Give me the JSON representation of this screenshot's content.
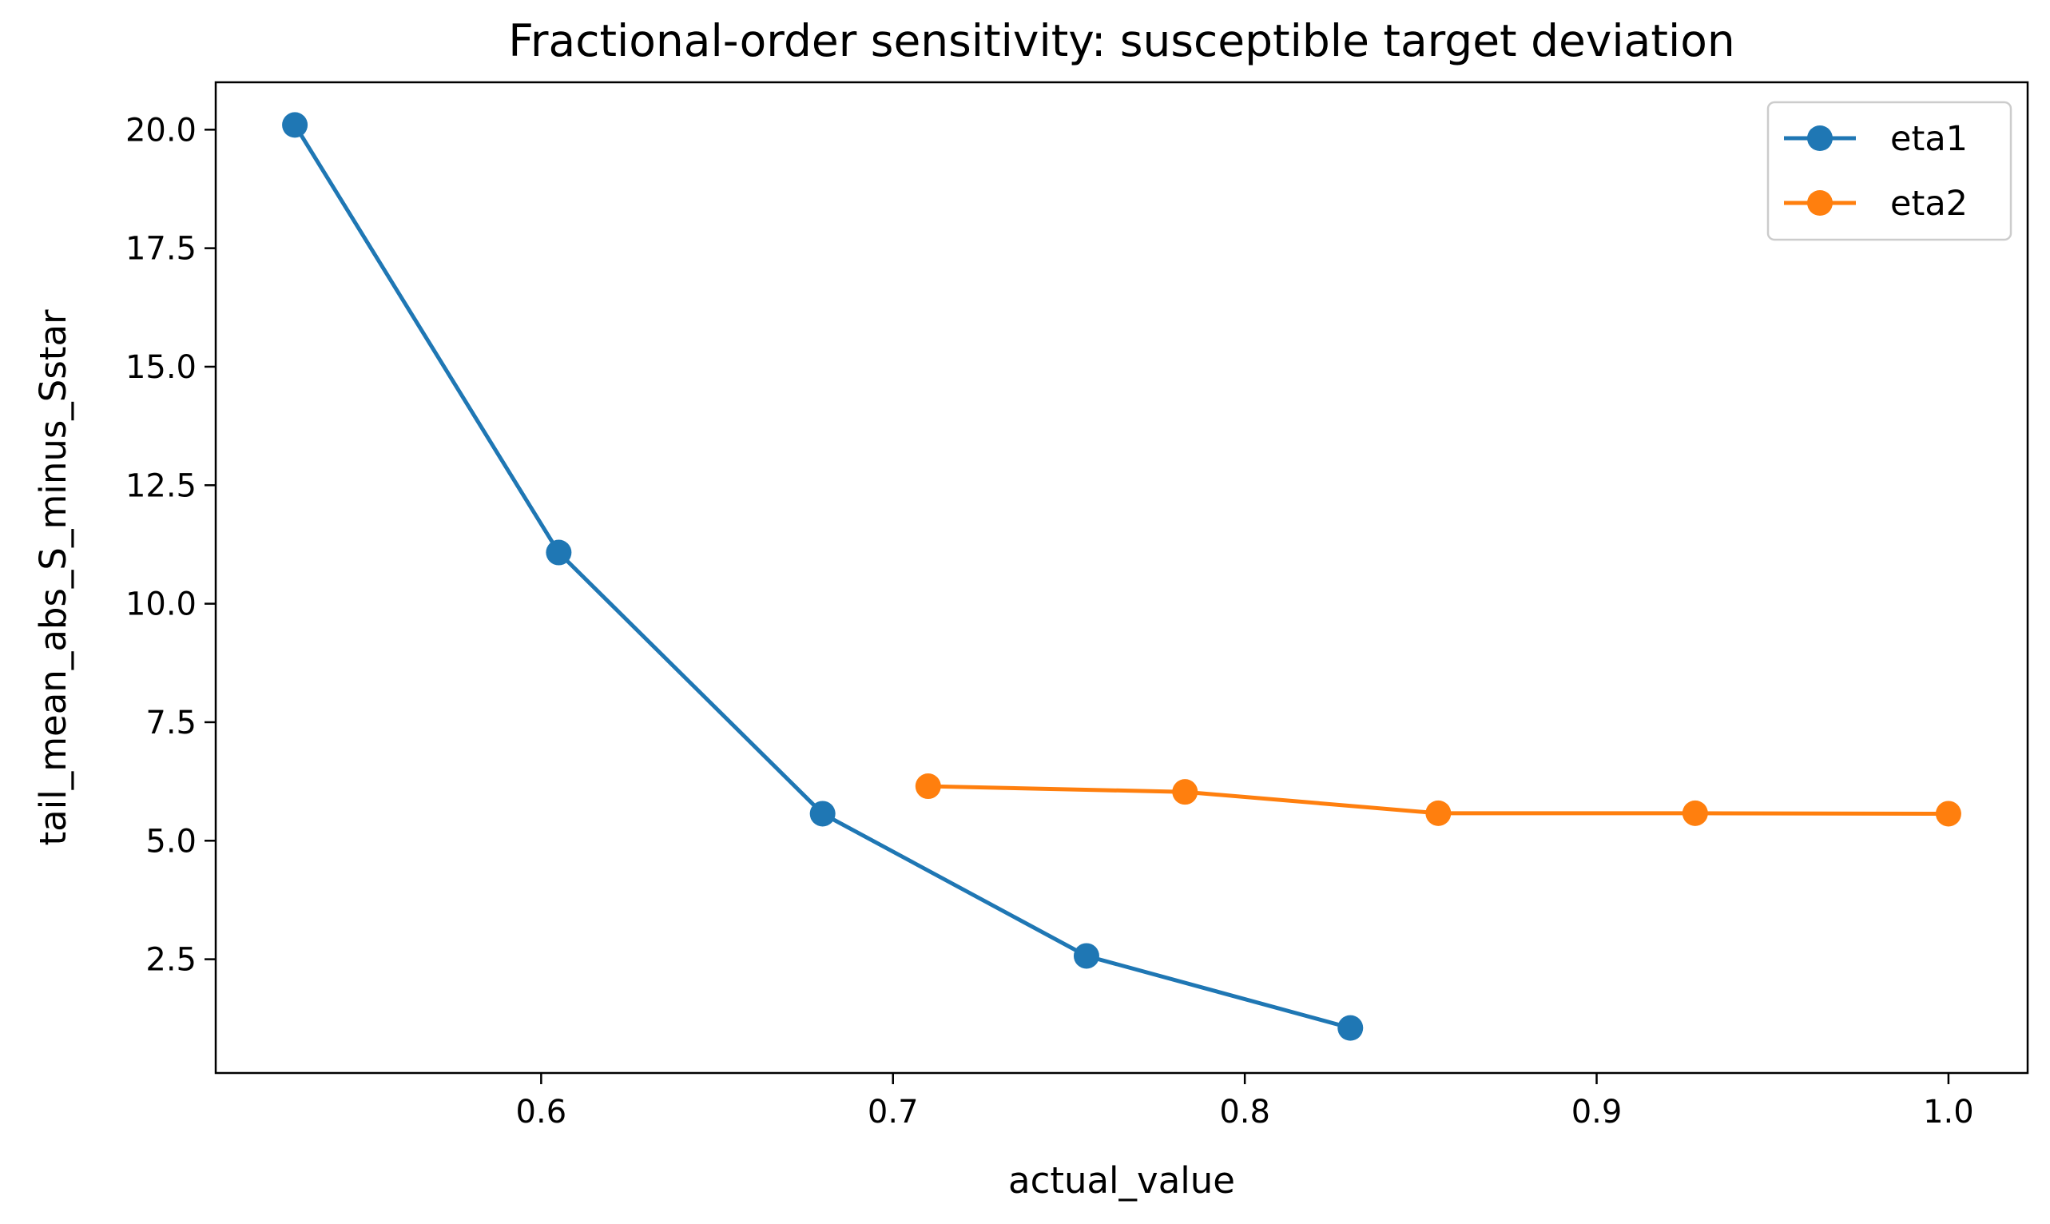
{
  "chart_data": {
    "type": "line",
    "title": "Fractional-order sensitivity: susceptible target deviation",
    "xlabel": "actual_value",
    "ylabel": "tail_mean_abs_S_minus_Sstar",
    "xlim": [
      0.5075,
      1.0225
    ],
    "ylim": [
      0.1,
      21.0
    ],
    "xticks": [
      "0.6",
      "0.7",
      "0.8",
      "0.9",
      "1.0"
    ],
    "yticks": [
      "2.5",
      "5.0",
      "7.5",
      "10.0",
      "12.5",
      "15.0",
      "17.5",
      "20.0"
    ],
    "grid": false,
    "legend_position": "top-right",
    "series": [
      {
        "name": "eta1",
        "color": "#1f77b4",
        "x": [
          0.53,
          0.605,
          0.68,
          0.755,
          0.83
        ],
        "y": [
          20.1,
          11.08,
          5.57,
          2.57,
          1.05
        ]
      },
      {
        "name": "eta2",
        "color": "#ff7f0e",
        "x": [
          0.71,
          0.783,
          0.855,
          0.928,
          1.0
        ],
        "y": [
          6.15,
          6.03,
          5.58,
          5.58,
          5.57
        ]
      }
    ]
  }
}
